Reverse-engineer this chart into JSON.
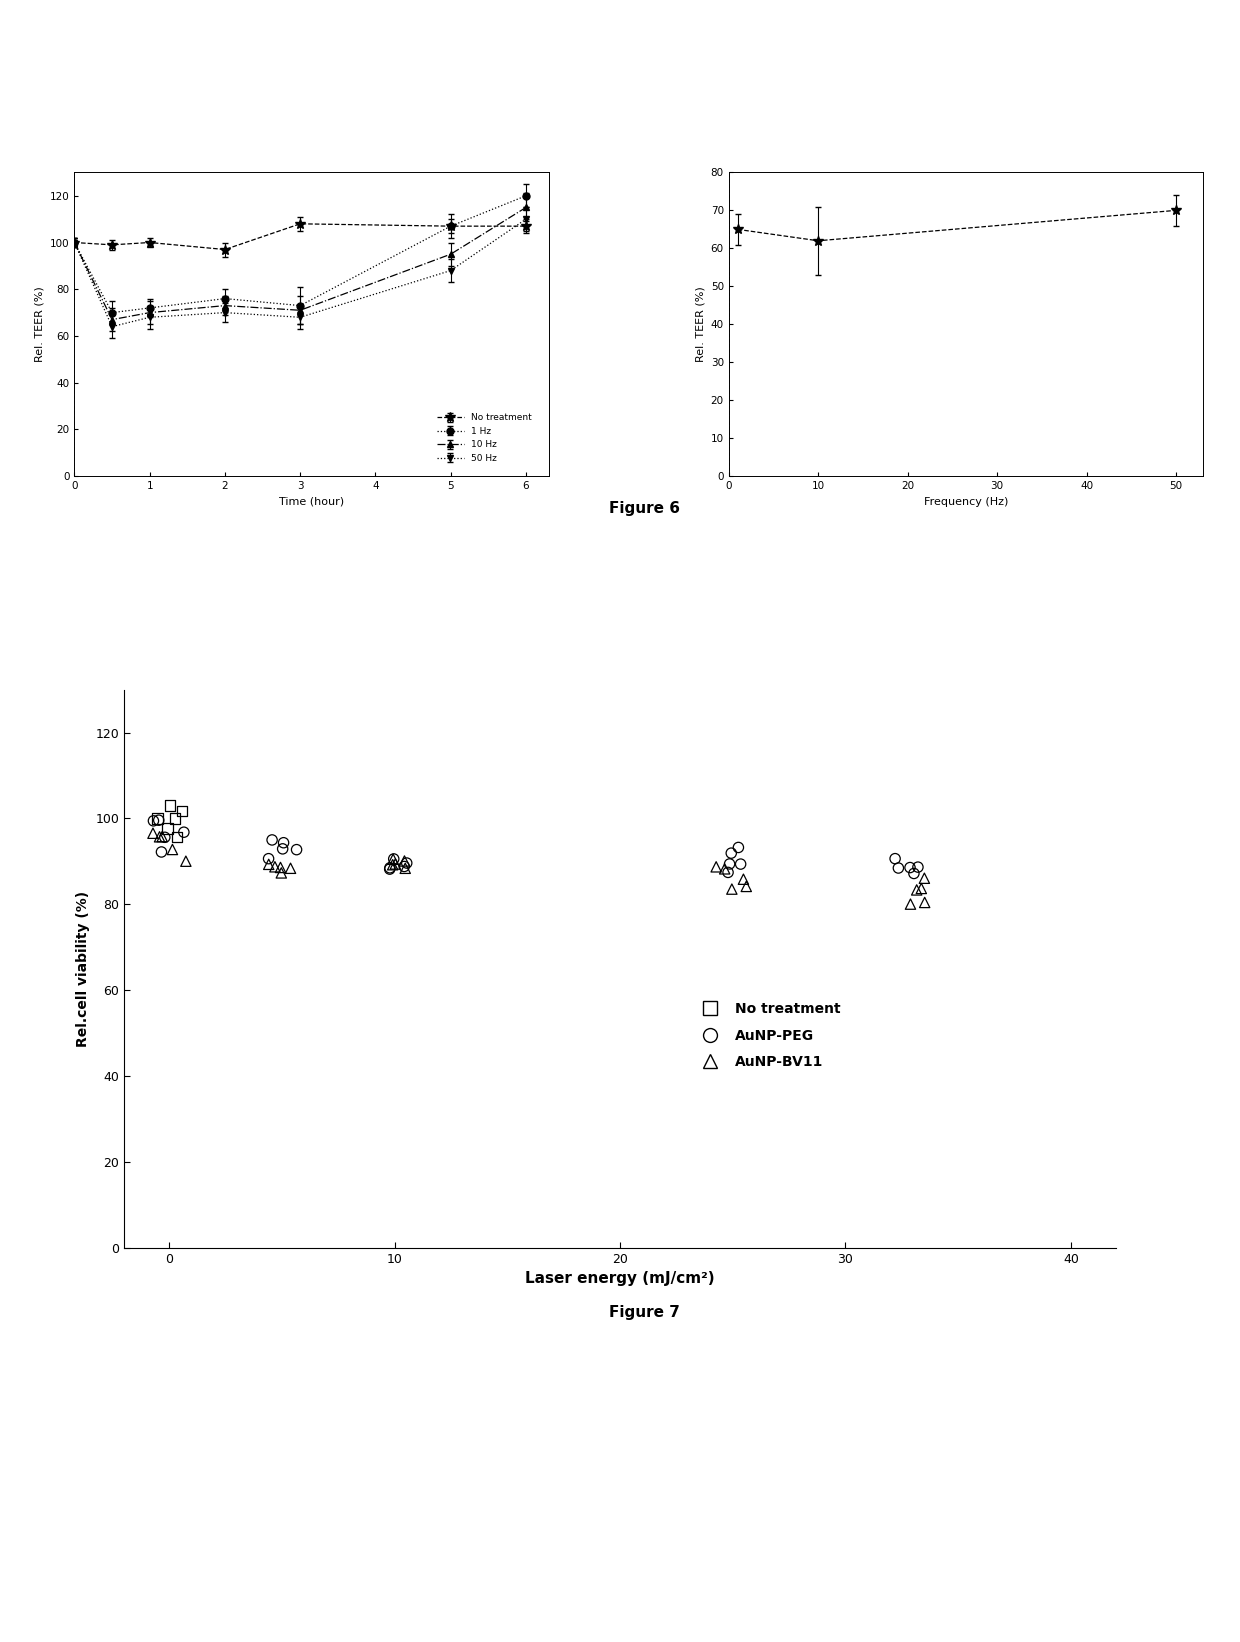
{
  "fig6_left": {
    "xlabel": "Time (hour)",
    "ylabel": "Rel. TEER (%)",
    "xlim": [
      0,
      6.3
    ],
    "ylim": [
      0,
      130
    ],
    "yticks": [
      0,
      20,
      40,
      60,
      80,
      100,
      120
    ],
    "xticks": [
      0,
      1,
      2,
      3,
      4,
      5,
      6
    ],
    "series": {
      "No treatment": {
        "x": [
          0,
          0.5,
          1,
          2,
          3,
          5,
          6
        ],
        "y": [
          100,
          99,
          100,
          97,
          108,
          107,
          107
        ],
        "yerr": [
          2,
          2,
          2,
          3,
          3,
          3,
          3
        ],
        "linestyle": "--",
        "marker": "*",
        "markersize": 6
      },
      "1 Hz": {
        "x": [
          0,
          0.5,
          1,
          2,
          3,
          5,
          6
        ],
        "y": [
          100,
          70,
          72,
          76,
          73,
          107,
          120
        ],
        "yerr": [
          2,
          5,
          4,
          4,
          8,
          5,
          5
        ],
        "linestyle": ":",
        "marker": "o",
        "markersize": 4
      },
      "10 Hz": {
        "x": [
          0,
          0.5,
          1,
          2,
          3,
          5,
          6
        ],
        "y": [
          100,
          67,
          70,
          73,
          71,
          95,
          115
        ],
        "yerr": [
          2,
          5,
          5,
          4,
          6,
          5,
          6
        ],
        "linestyle": "-.",
        "marker": "^",
        "markersize": 4
      },
      "50 Hz": {
        "x": [
          0,
          0.5,
          1,
          2,
          3,
          5,
          6
        ],
        "y": [
          100,
          64,
          68,
          70,
          68,
          88,
          110
        ],
        "yerr": [
          2,
          5,
          5,
          4,
          5,
          5,
          5
        ],
        "linestyle": ":",
        "marker": "v",
        "markersize": 4
      }
    },
    "legend": {
      "No treatment": "No treatment",
      "1 Hz": "1 Hz",
      "10 Hz": "10 Hz",
      "50 Hz": "50 Hz"
    }
  },
  "fig6_right": {
    "xlabel": "Frequency (Hz)",
    "ylabel": "Rel. TEER (%)",
    "xlim": [
      0,
      53
    ],
    "ylim": [
      0,
      80
    ],
    "yticks": [
      0,
      10,
      20,
      30,
      40,
      50,
      60,
      70,
      80
    ],
    "xticks": [
      0,
      10,
      20,
      30,
      40,
      50
    ],
    "x": [
      1,
      10,
      50
    ],
    "y": [
      65,
      62,
      70
    ],
    "yerr": [
      4,
      9,
      4
    ]
  },
  "fig7": {
    "xlabel": "Laser energy (mJ/cm²)",
    "ylabel": "Rel.cell viability (%)",
    "xlim": [
      -2,
      42
    ],
    "ylim": [
      0,
      130
    ],
    "yticks": [
      0,
      20,
      40,
      60,
      80,
      100,
      120
    ],
    "xticks": [
      0,
      10,
      20,
      30,
      40
    ],
    "clusters": {
      "No treatment": {
        "centers_x": [
          0
        ],
        "centers_y": [
          100
        ],
        "marker": "s",
        "n": 6,
        "spread_x": 0.6,
        "spread_y": 5
      },
      "AuNP-PEG": {
        "centers_x": [
          0,
          5,
          10,
          25,
          33
        ],
        "centers_y": [
          96,
          93,
          90,
          90,
          87
        ],
        "marker": "o",
        "n": 5,
        "spread_x": 0.8,
        "spread_y": 4
      },
      "AuNP-BV11": {
        "centers_x": [
          0,
          5,
          10,
          25,
          33
        ],
        "centers_y": [
          93,
          90,
          87,
          87,
          84
        ],
        "marker": "^",
        "n": 5,
        "spread_x": 0.8,
        "spread_y": 4
      }
    }
  },
  "figure6_label": "Figure 6",
  "figure7_label": "Figure 7",
  "bg": "#ffffff"
}
